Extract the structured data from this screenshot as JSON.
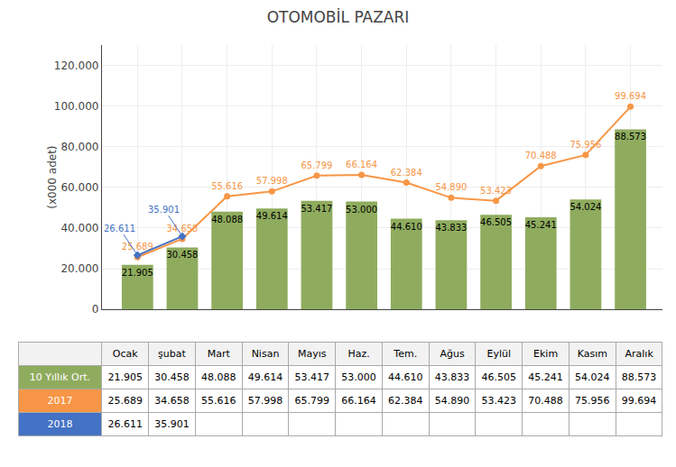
{
  "chart_data": {
    "type": "bar",
    "title": "OTOMOBİL PAZARI",
    "ylabel": "(x000 adet)",
    "categories": [
      "Ocak",
      "şubat",
      "Mart",
      "Nisan",
      "Mayıs",
      "Haz.",
      "Tem.",
      "Ağus",
      "Eylül",
      "Ekim",
      "Kasım",
      "Aralık"
    ],
    "series": [
      {
        "name": "10 Yıllık Ort.",
        "type": "bar",
        "color": "#8fac5e",
        "values": [
          21905,
          30458,
          48088,
          49614,
          53417,
          53000,
          44610,
          43833,
          46505,
          45241,
          54024,
          88573
        ],
        "value_labels": [
          "21.905",
          "30.458",
          "48.088",
          "49.614",
          "53.417",
          "53.000",
          "44.610",
          "43.833",
          "46.505",
          "45.241",
          "54.024",
          "88.573"
        ]
      },
      {
        "name": "2017",
        "type": "line",
        "marker": "circle",
        "color": "#f79646",
        "values": [
          25689,
          34658,
          55616,
          57998,
          65799,
          66164,
          62384,
          54890,
          53423,
          70488,
          75956,
          99694
        ],
        "value_labels": [
          "25.689",
          "34.658",
          "55.616",
          "57.998",
          "65.799",
          "66.164",
          "62.384",
          "54.890",
          "53.423",
          "70.488",
          "75.956",
          "99.694"
        ]
      },
      {
        "name": "2018",
        "type": "line",
        "marker": "diamond",
        "color": "#4472c4",
        "values": [
          26611,
          35901,
          null,
          null,
          null,
          null,
          null,
          null,
          null,
          null,
          null,
          null
        ],
        "value_labels": [
          "26.611",
          "35.901",
          null,
          null,
          null,
          null,
          null,
          null,
          null,
          null,
          null,
          null
        ]
      }
    ],
    "ylim": [
      0,
      130000
    ],
    "yticks": [
      0,
      {
        "value": 20000,
        "label": "20.000"
      },
      {
        "value": 40000,
        "label": "40.000"
      },
      {
        "value": 60000,
        "label": "60.000"
      },
      {
        "value": 80000,
        "label": "80.000"
      },
      {
        "value": 100000,
        "label": "100.000"
      },
      {
        "value": 120000,
        "label": "120.000"
      }
    ],
    "grid": true,
    "data_labels": true,
    "tick_labels": "y"
  }
}
